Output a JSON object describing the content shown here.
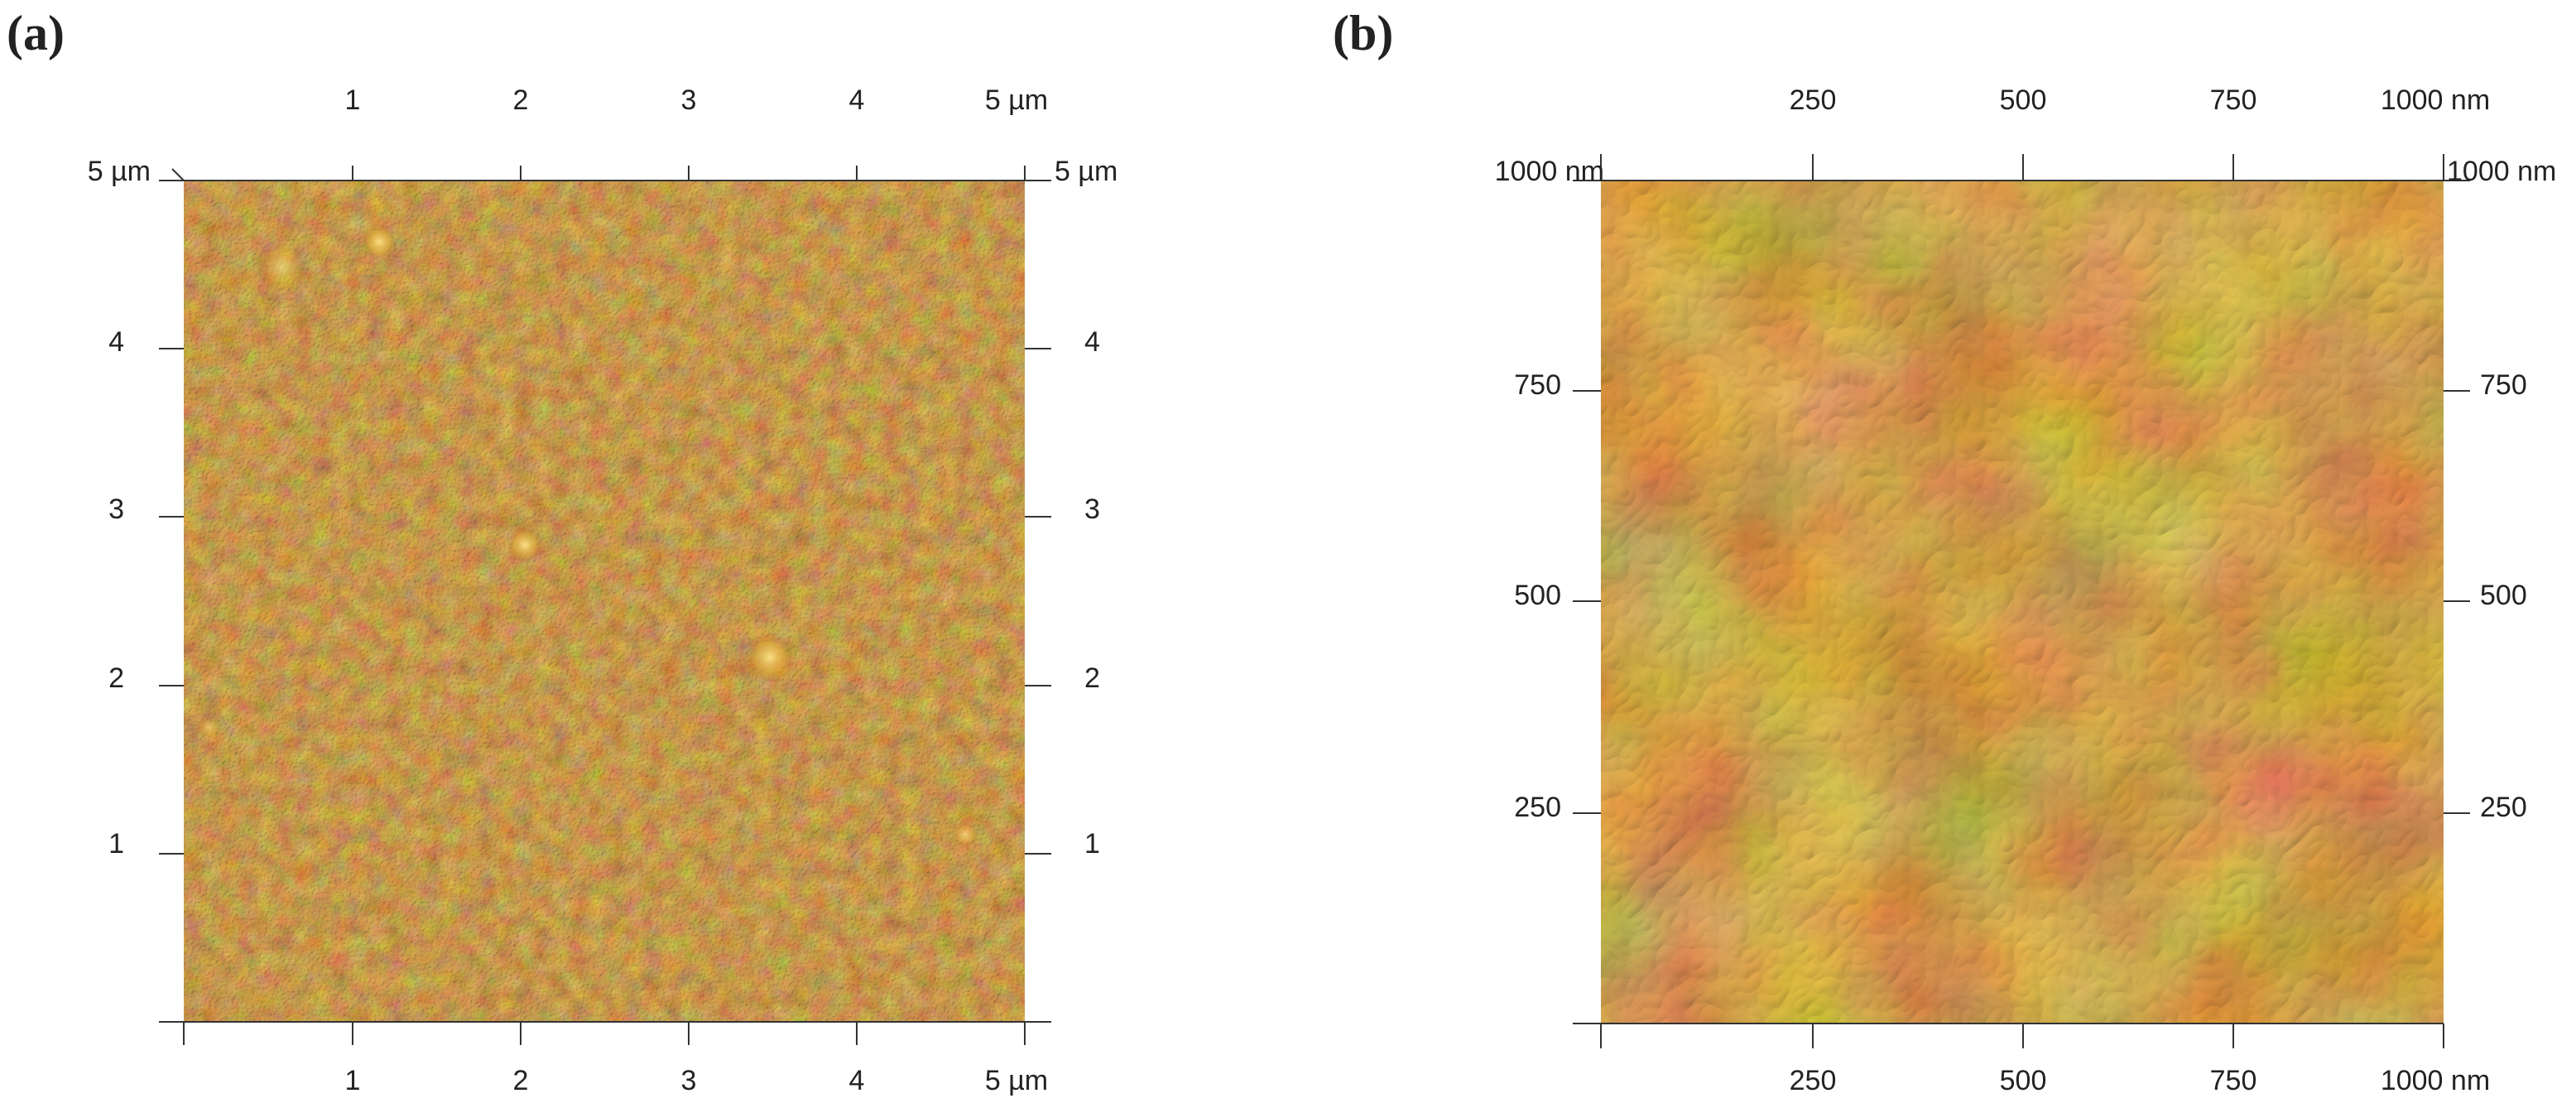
{
  "figure": {
    "panels": [
      {
        "label": "(a)",
        "top_ticks": [
          "1",
          "2",
          "3",
          "4",
          "5 µm"
        ],
        "bottom_ticks": [
          "1",
          "2",
          "3",
          "4",
          "5 µm"
        ],
        "left_ticks": [
          "5 µm",
          "4",
          "3",
          "2",
          "1"
        ],
        "right_ticks": [
          "5 µm",
          "4",
          "3",
          "2",
          "1"
        ],
        "image_description_icon": "afm-topography-5um"
      },
      {
        "label": "(b)",
        "top_ticks": [
          "250",
          "500",
          "750",
          "1000 nm"
        ],
        "bottom_ticks": [
          "250",
          "500",
          "750",
          "1000 nm"
        ],
        "left_ticks": [
          "1000 nm",
          "750",
          "500",
          "250"
        ],
        "right_ticks": [
          "1000 nm",
          "750",
          "500",
          "250"
        ],
        "image_description_icon": "afm-topography-1000nm"
      }
    ],
    "colors": {
      "afm_dark": "#6b2a0a",
      "afm_mid": "#9c4a12",
      "afm_light": "#d9a030",
      "axis": "#333333"
    }
  }
}
